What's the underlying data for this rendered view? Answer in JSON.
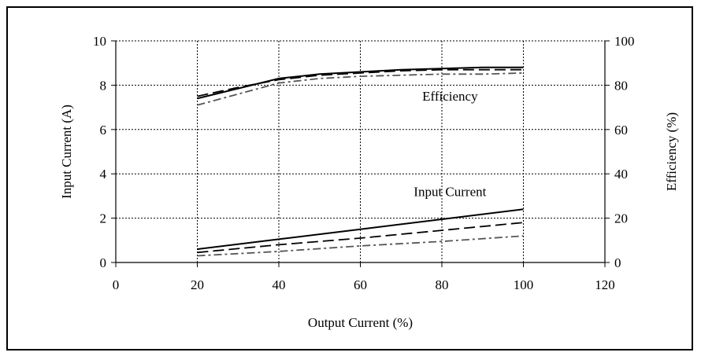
{
  "chart_data": {
    "type": "line",
    "xlabel": "Output Current (%)",
    "ylabel": "Input Current (A)",
    "y2label": "Efficiency (%)",
    "xlim": [
      0,
      120
    ],
    "ylim": [
      0,
      10
    ],
    "y2lim": [
      0,
      100
    ],
    "xticks": [
      0,
      20,
      40,
      60,
      80,
      100,
      120
    ],
    "yticks": [
      0,
      2,
      4,
      6,
      8,
      10
    ],
    "y2ticks": [
      0,
      20,
      40,
      60,
      80,
      100
    ],
    "grid": true,
    "annotations": [
      {
        "text": "Efficiency",
        "x": 82,
        "y": 7.3
      },
      {
        "text": "Input Current",
        "x": 82,
        "y": 3.0
      }
    ],
    "series": [
      {
        "group": "efficiency",
        "axis": "y2",
        "style": "solid",
        "color": "#000000",
        "x": [
          20,
          30,
          40,
          50,
          60,
          70,
          80,
          90,
          100
        ],
        "y": [
          74,
          78.5,
          83,
          85,
          86,
          87,
          87.5,
          88,
          88
        ]
      },
      {
        "group": "efficiency",
        "axis": "y2",
        "style": "dashed",
        "color": "#000000",
        "x": [
          20,
          30,
          40,
          50,
          60,
          70,
          80,
          90,
          100
        ],
        "y": [
          75,
          79,
          82.5,
          84.5,
          85.5,
          86.5,
          87,
          87,
          87
        ]
      },
      {
        "group": "efficiency",
        "axis": "y2",
        "style": "dashdot",
        "color": "#555555",
        "x": [
          20,
          30,
          40,
          50,
          60,
          70,
          80,
          90,
          100
        ],
        "y": [
          71,
          76,
          81,
          83,
          84,
          84.5,
          85,
          85,
          85.5
        ]
      },
      {
        "group": "input_current",
        "axis": "y",
        "style": "solid",
        "color": "#000000",
        "x": [
          20,
          40,
          60,
          80,
          100
        ],
        "y": [
          0.6,
          1.05,
          1.5,
          1.95,
          2.4
        ]
      },
      {
        "group": "input_current",
        "axis": "y",
        "style": "dashed",
        "color": "#000000",
        "x": [
          20,
          40,
          60,
          80,
          100
        ],
        "y": [
          0.45,
          0.8,
          1.1,
          1.45,
          1.8
        ]
      },
      {
        "group": "input_current",
        "axis": "y",
        "style": "dashdot",
        "color": "#555555",
        "x": [
          20,
          40,
          60,
          80,
          100
        ],
        "y": [
          0.3,
          0.5,
          0.75,
          0.95,
          1.2
        ]
      }
    ]
  }
}
